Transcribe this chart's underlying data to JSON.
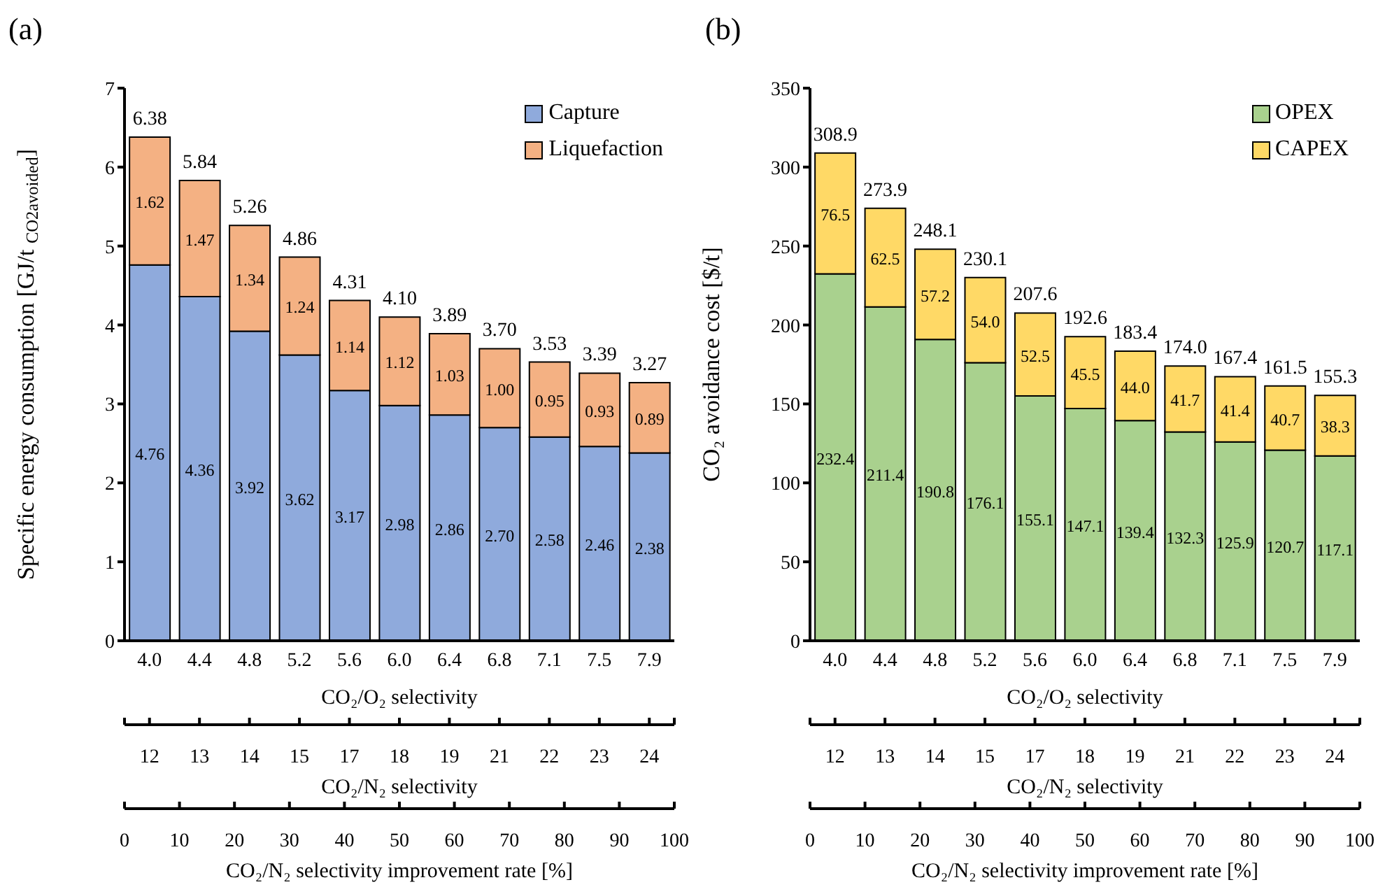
{
  "chart_data": [
    {
      "type": "bar",
      "title": "(a)",
      "stacked": true,
      "legend": "top right",
      "categories": [
        "4.0",
        "4.4",
        "4.8",
        "5.2",
        "5.6",
        "6.0",
        "6.4",
        "6.8",
        "7.1",
        "7.5",
        "7.9"
      ],
      "xlabel": "CO₂/O₂ selectivity",
      "ylabel": "Specific energy consumption [GJ/t $_{CO2avoided}$]",
      "ylim": [
        0,
        7
      ],
      "yticks": [
        0,
        1,
        2,
        3,
        4,
        5,
        6,
        7
      ],
      "series": [
        {
          "name": "Capture",
          "color": "#8faadc",
          "values": [
            4.76,
            4.36,
            3.92,
            3.62,
            3.17,
            2.98,
            2.86,
            2.7,
            2.58,
            2.46,
            2.38
          ],
          "value_labels": [
            "4.76",
            "4.36",
            "3.92",
            "3.62",
            "3.17",
            "2.98",
            "2.86",
            "2.70",
            "2.58",
            "2.46",
            "2.38"
          ]
        },
        {
          "name": "Liquefaction",
          "color": "#f4b183",
          "values": [
            1.62,
            1.47,
            1.34,
            1.24,
            1.14,
            1.12,
            1.03,
            1.0,
            0.95,
            0.93,
            0.89
          ],
          "value_labels": [
            "1.62",
            "1.47",
            "1.34",
            "1.24",
            "1.14",
            "1.12",
            "1.03",
            "1.00",
            "0.95",
            "0.93",
            "0.89"
          ]
        }
      ],
      "totals": [
        "6.38",
        "5.84",
        "5.26",
        "4.86",
        "4.31",
        "4.10",
        "3.89",
        "3.70",
        "3.53",
        "3.39",
        "3.27"
      ],
      "annotations": [
        {
          "text": "12",
          "x": "4.0"
        },
        {
          "text": "13",
          "x": "4.4"
        },
        {
          "text": "14",
          "x": "4.8"
        },
        {
          "text": "15",
          "x": "5.2"
        },
        {
          "text": "17",
          "x": "5.6"
        },
        {
          "text": "18",
          "x": "6.0"
        },
        {
          "text": "19",
          "x": "6.4"
        },
        {
          "text": "21",
          "x": "6.8"
        },
        {
          "text": "22",
          "x": "7.1"
        },
        {
          "text": "23",
          "x": "7.5"
        },
        {
          "text": "24",
          "x": "7.9"
        },
        "CO₂/N₂ selectivity",
        "0",
        "10",
        "20",
        "30",
        "40",
        "50",
        "60",
        "70",
        "80",
        "90",
        "100",
        "CO₂/N₂ selectivity improvement rate [%]"
      ]
    },
    {
      "type": "bar",
      "title": "(b)",
      "stacked": true,
      "legend": "top right",
      "categories": [
        "4.0",
        "4.4",
        "4.8",
        "5.2",
        "5.6",
        "6.0",
        "6.4",
        "6.8",
        "7.1",
        "7.5",
        "7.9"
      ],
      "xlabel": "CO₂/O₂ selectivity",
      "ylabel": "CO₂ avoidance cost [$/t]",
      "ylim": [
        0,
        350
      ],
      "yticks": [
        0,
        50,
        100,
        150,
        200,
        250,
        300,
        350
      ],
      "series": [
        {
          "name": "OPEX",
          "color": "#a9d18e",
          "values": [
            232.4,
            211.4,
            190.8,
            176.1,
            155.1,
            147.1,
            139.4,
            132.3,
            125.9,
            120.7,
            117.1
          ],
          "value_labels": [
            "232.4",
            "211.4",
            "190.8",
            "176.1",
            "155.1",
            "147.1",
            "139.4",
            "132.3",
            "125.9",
            "120.7",
            "117.1"
          ]
        },
        {
          "name": "CAPEX",
          "color": "#ffd966",
          "values": [
            76.5,
            62.5,
            57.2,
            54.0,
            52.5,
            45.5,
            44.0,
            41.7,
            41.4,
            40.7,
            38.3
          ],
          "value_labels": [
            "76.5",
            "62.5",
            "57.2",
            "54.0",
            "52.5",
            "45.5",
            "44.0",
            "41.7",
            "41.4",
            "40.7",
            "38.3"
          ]
        }
      ],
      "totals": [
        "308.9",
        "273.9",
        "248.1",
        "230.1",
        "207.6",
        "192.6",
        "183.4",
        "174.0",
        "167.4",
        "161.5",
        "155.3"
      ],
      "annotations": [
        {
          "text": "12",
          "x": "4.0"
        },
        {
          "text": "13",
          "x": "4.4"
        },
        {
          "text": "14",
          "x": "4.8"
        },
        {
          "text": "15",
          "x": "5.2"
        },
        {
          "text": "17",
          "x": "5.6"
        },
        {
          "text": "18",
          "x": "6.0"
        },
        {
          "text": "19",
          "x": "6.4"
        },
        {
          "text": "21",
          "x": "6.8"
        },
        {
          "text": "22",
          "x": "7.1"
        },
        {
          "text": "23",
          "x": "7.5"
        },
        {
          "text": "24",
          "x": "7.9"
        },
        "CO₂/N₂ selectivity",
        "0",
        "10",
        "20",
        "30",
        "40",
        "50",
        "60",
        "70",
        "80",
        "90",
        "100",
        "CO₂/N₂ selectivity improvement rate [%]"
      ]
    }
  ]
}
